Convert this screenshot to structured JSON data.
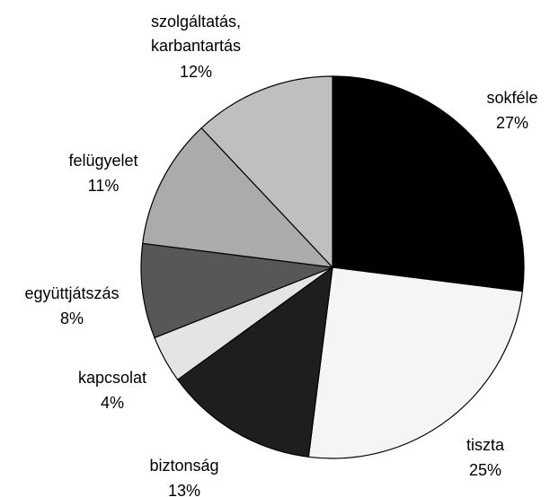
{
  "chart_data": {
    "type": "pie",
    "categories": [
      "sokféle",
      "tiszta",
      "biztonság",
      "kapcsolat",
      "együttjátszás",
      "felügyelet",
      "szolgáltatás,\nkarbantartás"
    ],
    "values": [
      27,
      25,
      13,
      4,
      8,
      11,
      12
    ],
    "value_labels": [
      "27%",
      "25%",
      "13%",
      "4%",
      "8%",
      "11%",
      "12%"
    ],
    "colors": [
      "#000000",
      "#f5f5f5",
      "#1e1e1e",
      "#e4e4e4",
      "#575757",
      "#ababab",
      "#bfbfbf"
    ]
  }
}
